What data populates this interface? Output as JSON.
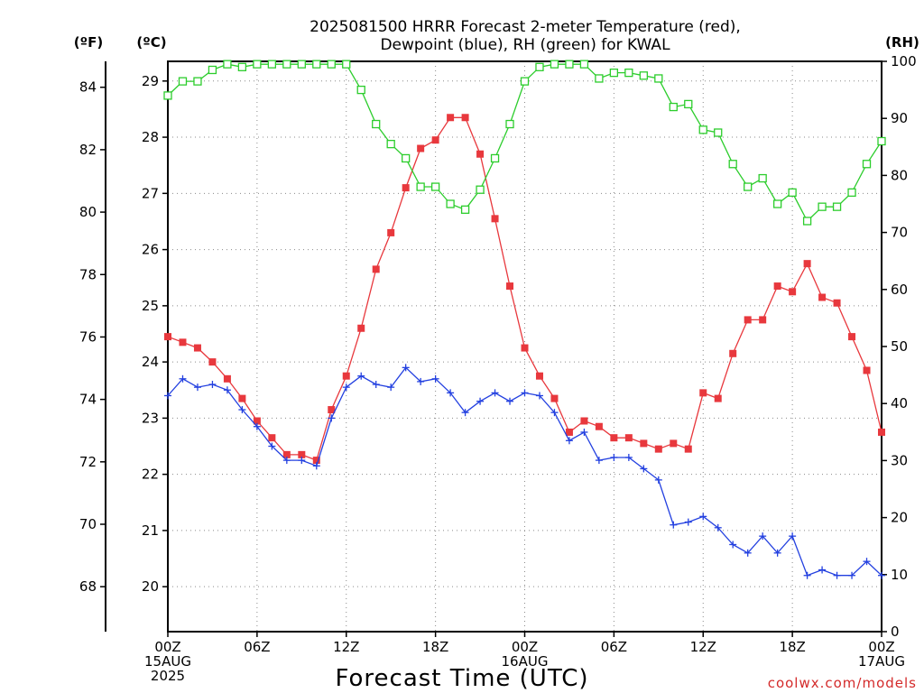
{
  "chart_data": {
    "type": "line",
    "title": [
      "2025081500 HRRR Forecast 2-meter Temperature (red),",
      "Dewpoint (blue), RH (green) for KWAL"
    ],
    "xlabel": "Forecast Time (UTC)",
    "credit": "coolwx.com/models",
    "y_left_outer_label": "(ºF)",
    "y_left_inner_label": "(ºC)",
    "y_right_label": "(RH)",
    "x_hours_range": [
      0,
      48
    ],
    "x_ticks": [
      {
        "h": 0,
        "lines": [
          "00Z",
          "15AUG",
          "2025"
        ]
      },
      {
        "h": 6,
        "lines": [
          "06Z"
        ]
      },
      {
        "h": 12,
        "lines": [
          "12Z"
        ]
      },
      {
        "h": 18,
        "lines": [
          "18Z"
        ]
      },
      {
        "h": 24,
        "lines": [
          "00Z",
          "16AUG"
        ]
      },
      {
        "h": 30,
        "lines": [
          "06Z"
        ]
      },
      {
        "h": 36,
        "lines": [
          "12Z"
        ]
      },
      {
        "h": 42,
        "lines": [
          "18Z"
        ]
      },
      {
        "h": 48,
        "lines": [
          "00Z",
          "17AUG"
        ]
      }
    ],
    "y_celsius_range": [
      19.2,
      29.35
    ],
    "y_celsius_ticks": [
      20,
      21,
      22,
      23,
      24,
      25,
      26,
      27,
      28,
      29
    ],
    "y_fahrenheit_ticks": [
      68,
      70,
      72,
      74,
      76,
      78,
      80,
      82,
      84
    ],
    "y_rh_range": [
      0,
      100
    ],
    "y_rh_ticks": [
      0,
      10,
      20,
      30,
      40,
      50,
      60,
      70,
      80,
      90,
      100
    ],
    "grid": true,
    "series": [
      {
        "name": "Temperature",
        "color": "#e8383d",
        "marker": "filled-square",
        "axis": "celsius",
        "values": [
          24.45,
          24.35,
          24.25,
          24.0,
          23.7,
          23.35,
          22.95,
          22.65,
          22.35,
          22.35,
          22.25,
          23.15,
          23.75,
          24.6,
          25.65,
          26.3,
          27.1,
          27.8,
          27.95,
          28.35,
          28.35,
          27.7,
          26.55,
          25.35,
          24.25,
          23.75,
          23.35,
          22.75,
          22.95,
          22.85,
          22.65,
          22.65,
          22.55,
          22.45,
          22.55,
          22.45,
          23.45,
          23.35,
          24.15,
          24.75,
          24.75,
          25.35,
          25.25,
          25.75,
          25.15,
          25.05,
          24.45,
          23.85,
          22.75
        ]
      },
      {
        "name": "Dewpoint",
        "color": "#2340e0",
        "marker": "plus",
        "axis": "celsius",
        "values": [
          23.4,
          23.7,
          23.55,
          23.6,
          23.5,
          23.15,
          22.85,
          22.5,
          22.25,
          22.25,
          22.15,
          23.0,
          23.55,
          23.75,
          23.6,
          23.55,
          23.9,
          23.65,
          23.7,
          23.45,
          23.1,
          23.3,
          23.45,
          23.3,
          23.45,
          23.4,
          23.1,
          22.6,
          22.75,
          22.25,
          22.3,
          22.3,
          22.1,
          21.9,
          21.1,
          21.15,
          21.25,
          21.05,
          20.75,
          20.6,
          20.9,
          20.6,
          20.9,
          20.2,
          20.3,
          20.2,
          20.2,
          20.45,
          20.2
        ]
      },
      {
        "name": "RH",
        "color": "#2ccd2c",
        "marker": "open-square",
        "axis": "rh",
        "values": [
          94,
          96.5,
          96.5,
          98.5,
          99.5,
          99,
          99.5,
          99.5,
          99.5,
          99.5,
          99.5,
          99.5,
          99.5,
          95,
          89,
          85.5,
          83,
          78,
          78,
          75,
          74,
          77.5,
          83,
          89,
          96.5,
          99,
          99.5,
          99.5,
          99.5,
          97,
          98,
          98,
          97.5,
          97,
          92,
          92.5,
          88,
          87.5,
          82,
          78,
          79.5,
          75,
          77,
          72,
          74.5,
          74.5,
          77,
          82,
          86
        ]
      }
    ]
  }
}
